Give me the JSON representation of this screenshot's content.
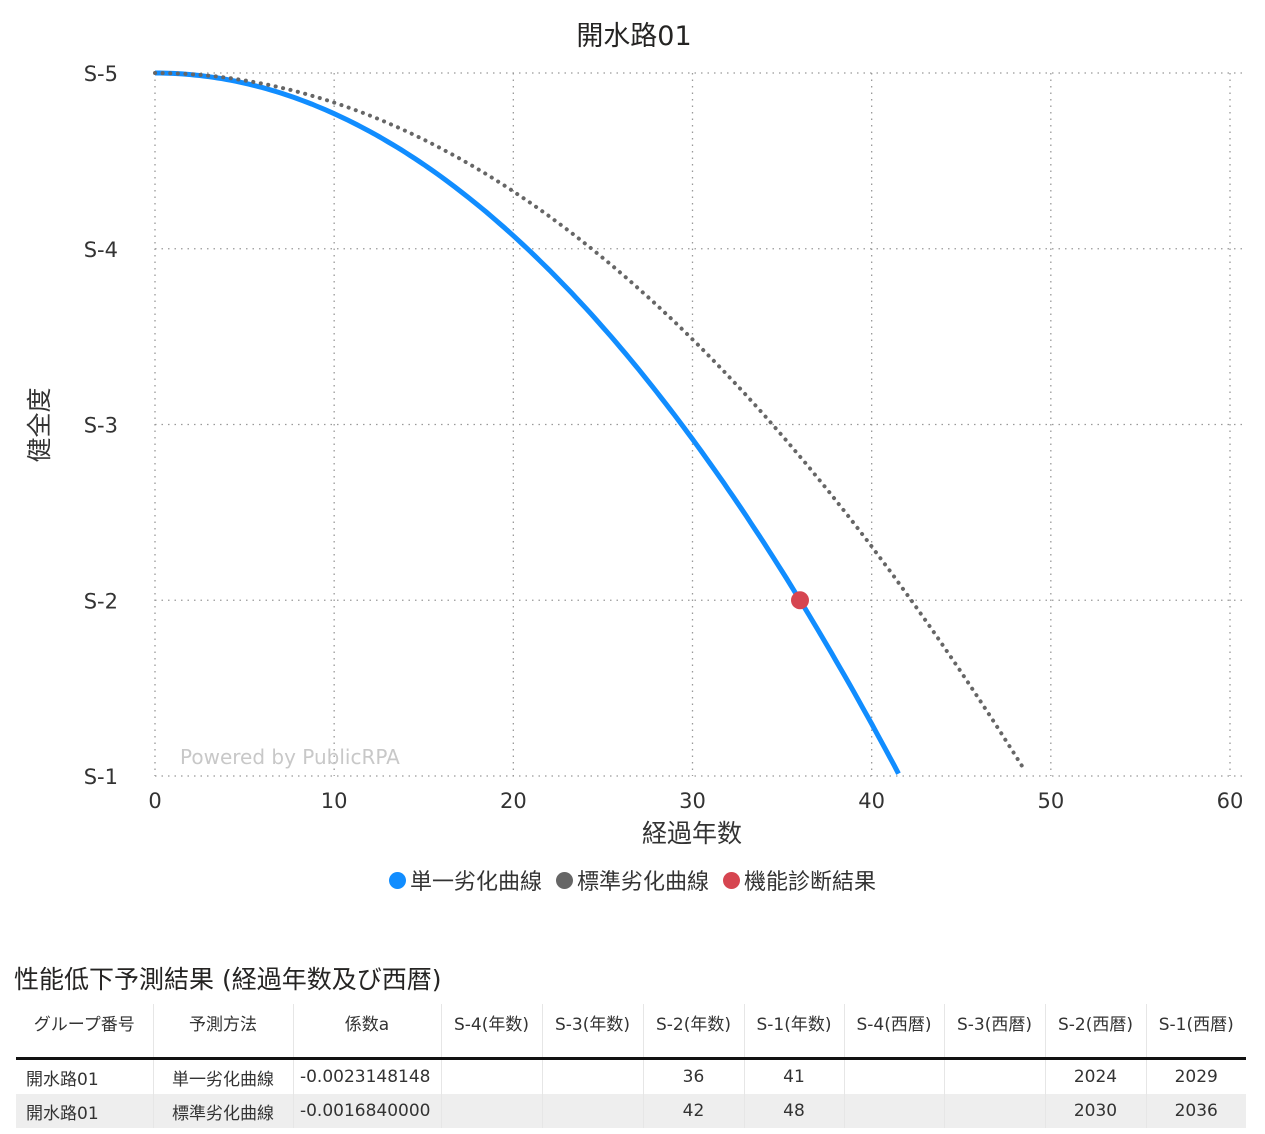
{
  "chart_data": {
    "type": "line",
    "title": "開水路01",
    "xlabel": "経過年数",
    "ylabel": "健全度",
    "xlim": [
      0,
      60
    ],
    "ylim": [
      1,
      5
    ],
    "xticks": [
      "0",
      "10",
      "20",
      "30",
      "40",
      "50",
      "60"
    ],
    "yticks": [
      "S-5",
      "S-4",
      "S-3",
      "S-2",
      "S-1"
    ],
    "grid": "dotted",
    "legend_position": "bottom",
    "watermark": "Powered by PublicRPA",
    "series": [
      {
        "name": "単一劣化曲線",
        "color": "#118DFF",
        "style": "solid",
        "coefficient": -0.0023148148,
        "x": [
          0,
          5,
          10,
          15,
          20,
          25,
          30,
          35,
          40,
          41.6
        ],
        "y": [
          5.0,
          4.94,
          4.77,
          4.48,
          4.07,
          3.55,
          2.92,
          2.16,
          1.3,
          1.0
        ]
      },
      {
        "name": "標準劣化曲線",
        "color": "#666666",
        "style": "dotted",
        "coefficient": -0.001684,
        "x": [
          0,
          5,
          10,
          15,
          20,
          25,
          30,
          35,
          40,
          45,
          48.7
        ],
        "y": [
          5.0,
          4.96,
          4.83,
          4.62,
          4.33,
          3.95,
          3.48,
          2.94,
          2.31,
          1.59,
          1.0
        ]
      },
      {
        "name": "機能診断結果",
        "color": "#D64550",
        "style": "point",
        "x": [
          36
        ],
        "y": [
          2
        ]
      }
    ]
  },
  "table": {
    "title": "性能低下予測結果 (経過年数及び西暦)",
    "headers": [
      "グループ番号",
      "予測方法",
      "係数a",
      "S-4(年数)",
      "S-3(年数)",
      "S-2(年数)",
      "S-1(年数)",
      "S-4(西暦)",
      "S-3(西暦)",
      "S-2(西暦)",
      "S-1(西暦)"
    ],
    "rows": [
      [
        "開水路01",
        "単一劣化曲線",
        "-0.0023148148",
        "",
        "",
        "36",
        "41",
        "",
        "",
        "2024",
        "2029"
      ],
      [
        "開水路01",
        "標準劣化曲線",
        "-0.0016840000",
        "",
        "",
        "42",
        "48",
        "",
        "",
        "2030",
        "2036"
      ]
    ]
  }
}
